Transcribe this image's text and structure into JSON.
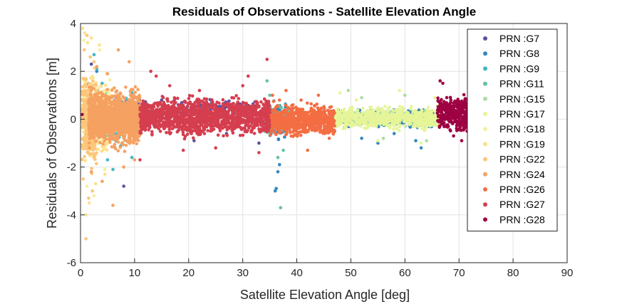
{
  "chart_data": {
    "type": "scatter",
    "title": "Residuals of Observations - Satellite Elevation Angle",
    "xlabel": "Satellite Elevation Angle [deg]",
    "ylabel": "Residuals of Observations [m]",
    "xlim": [
      0,
      90
    ],
    "ylim": [
      -6,
      4
    ],
    "xticks": [
      0,
      10,
      20,
      30,
      40,
      50,
      60,
      70,
      80,
      90
    ],
    "yticks": [
      -6,
      -4,
      -2,
      0,
      2,
      4
    ],
    "grid": true,
    "legend_position": "top-right",
    "series": [
      {
        "name": "PRN :G7",
        "color": "#5e4fa2",
        "points": [
          [
            1.0,
            0.4
          ],
          [
            2.0,
            2.3
          ],
          [
            8.0,
            -2.8
          ],
          [
            12.0,
            0.5
          ],
          [
            15.0,
            0.8
          ],
          [
            18.0,
            -0.5
          ],
          [
            21.0,
            -0.9
          ],
          [
            24.0,
            0.4
          ],
          [
            27.0,
            -0.6
          ],
          [
            30.0,
            0.2
          ],
          [
            33.0,
            -1.0
          ]
        ],
        "bands": [
          [
            2,
            33,
            0,
            0.9,
            180
          ]
        ]
      },
      {
        "name": "PRN :G8",
        "color": "#3288bd",
        "points": [
          [
            1.2,
            1.5
          ],
          [
            3.0,
            2.0
          ],
          [
            36.0,
            -3.0
          ],
          [
            36.2,
            -2.9
          ],
          [
            36.5,
            -2.2
          ],
          [
            36.8,
            -1.9
          ],
          [
            47.0,
            -0.5
          ],
          [
            52.0,
            -0.8
          ],
          [
            55.0,
            -1.0
          ],
          [
            58.0,
            -0.6
          ],
          [
            62.0,
            -0.9
          ],
          [
            63.0,
            -1.2
          ]
        ],
        "bands": [
          [
            35,
            38,
            -0.9,
            0.9,
            120
          ],
          [
            46,
            67,
            -0.4,
            0.45,
            380
          ]
        ]
      },
      {
        "name": "PRN :G9",
        "color": "#41b6c4",
        "points": [
          [
            2.5,
            2.7
          ],
          [
            3.0,
            2.1
          ],
          [
            4.0,
            1.5
          ],
          [
            5.0,
            -1.7
          ],
          [
            5.5,
            0.3
          ],
          [
            6.0,
            -2.1
          ],
          [
            9.5,
            -1.6
          ],
          [
            10.5,
            -0.5
          ]
        ],
        "bands": [
          [
            1,
            10,
            -1.5,
            1.5,
            180
          ]
        ]
      },
      {
        "name": "PRN :G11",
        "color": "#66c2a5",
        "points": [
          [
            34.5,
            1.6
          ],
          [
            35.0,
            1.0
          ],
          [
            36.5,
            -1.6
          ],
          [
            37.0,
            -3.7
          ],
          [
            37.5,
            -1.3
          ],
          [
            38.0,
            0.6
          ]
        ],
        "bands": [
          [
            34,
            39,
            -0.7,
            0.6,
            140
          ]
        ]
      },
      {
        "name": "PRN :G15",
        "color": "#abdda4",
        "points": [
          [
            49.5,
            1.2
          ],
          [
            52.0,
            0.9
          ],
          [
            56.0,
            -0.8
          ],
          [
            60.0,
            1.0
          ],
          [
            64.0,
            -0.9
          ]
        ],
        "bands": [
          [
            47,
            66,
            -0.4,
            0.5,
            150
          ]
        ]
      },
      {
        "name": "PRN :G17",
        "color": "#e6f598",
        "points": [
          [
            48.0,
            1.1
          ],
          [
            51.0,
            0.8
          ],
          [
            55.0,
            -0.9
          ],
          [
            59.0,
            1.2
          ],
          [
            63.0,
            -1.0
          ],
          [
            65.5,
            0.9
          ]
        ],
        "bands": [
          [
            47,
            66.5,
            -0.5,
            0.6,
            650
          ]
        ]
      },
      {
        "name": "PRN :G18",
        "color": "#f4f0a0",
        "points": [
          [
            0.6,
            3.3
          ],
          [
            1.2,
            -2.8
          ],
          [
            1.8,
            2.6
          ],
          [
            2.5,
            -3.2
          ],
          [
            3.5,
            2.9
          ],
          [
            4.5,
            -2.1
          ]
        ],
        "bands": [
          [
            0.5,
            6,
            -1.5,
            1.8,
            180
          ]
        ]
      },
      {
        "name": "PRN :G19",
        "color": "#fee08b",
        "points": [
          [
            0.4,
            3.8
          ],
          [
            0.8,
            3.6
          ],
          [
            1.0,
            -4.0
          ],
          [
            1.3,
            3.2
          ],
          [
            1.6,
            -3.5
          ],
          [
            2.0,
            3.4
          ],
          [
            2.8,
            -2.7
          ],
          [
            3.5,
            3.1
          ],
          [
            4.5,
            -2.3
          ]
        ],
        "bands": [
          [
            0.3,
            5,
            -2.0,
            2.2,
            200
          ]
        ]
      },
      {
        "name": "PRN :G22",
        "color": "#fdc67a",
        "points": [
          [
            0.5,
            -2.5
          ],
          [
            0.7,
            2.9
          ],
          [
            1.0,
            -5.0
          ],
          [
            1.2,
            3.5
          ],
          [
            1.5,
            -3.3
          ],
          [
            1.8,
            2.6
          ],
          [
            2.2,
            -3.0
          ],
          [
            2.5,
            2.4
          ]
        ],
        "bands": [
          [
            0.3,
            3,
            -2.4,
            2.4,
            300
          ]
        ]
      },
      {
        "name": "PRN :G24",
        "color": "#f5a162",
        "points": [
          [
            2.0,
            -2.2
          ],
          [
            3.0,
            2.2
          ],
          [
            4.0,
            -2.6
          ],
          [
            5.0,
            1.9
          ],
          [
            6.0,
            -3.6
          ],
          [
            7.0,
            2.9
          ],
          [
            8.0,
            -2.0
          ],
          [
            9.0,
            2.4
          ],
          [
            10.0,
            -1.7
          ]
        ],
        "bands": [
          [
            1.5,
            11,
            -1.3,
            1.4,
            1300
          ]
        ]
      },
      {
        "name": "PRN :G26",
        "color": "#f46d43",
        "points": [
          [
            35.5,
            1.0
          ],
          [
            38.0,
            1.2
          ],
          [
            42.0,
            -1.3
          ],
          [
            44.0,
            1.0
          ],
          [
            46.0,
            -0.8
          ]
        ],
        "bands": [
          [
            35,
            47,
            -0.8,
            0.75,
            650
          ]
        ]
      },
      {
        "name": "PRN :G27",
        "color": "#d53e4f",
        "points": [
          [
            11.0,
            -1.7
          ],
          [
            13.0,
            2.0
          ],
          [
            14.0,
            1.8
          ],
          [
            16.5,
            1.4
          ],
          [
            19.0,
            -1.3
          ],
          [
            22.0,
            1.2
          ],
          [
            25.0,
            -1.2
          ],
          [
            28.0,
            0.9
          ],
          [
            30.0,
            1.4
          ],
          [
            31.0,
            1.8
          ],
          [
            33.0,
            -1.4
          ],
          [
            34.5,
            2.5
          ]
        ],
        "bands": [
          [
            11,
            35,
            -0.8,
            1.0,
            1400
          ]
        ]
      },
      {
        "name": "PRN :G28",
        "color": "#9e0142",
        "points": [
          [
            0.3,
            0.2
          ],
          [
            66.5,
            1.6
          ],
          [
            67.0,
            1.5
          ],
          [
            69.0,
            -0.7
          ],
          [
            70.5,
            -0.9
          ],
          [
            71.5,
            -0.5
          ]
        ],
        "bands": [
          [
            66,
            72,
            -0.6,
            1.1,
            300
          ]
        ]
      }
    ]
  }
}
